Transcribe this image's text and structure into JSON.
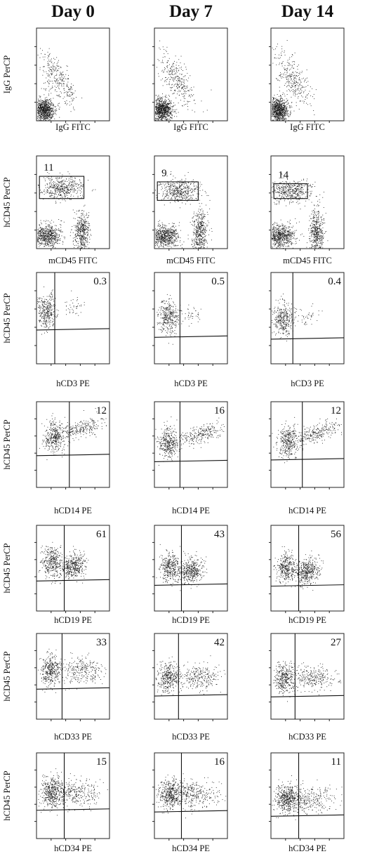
{
  "chart_data": {
    "type": "scatter",
    "columns": [
      "Day 0",
      "Day 7",
      "Day 14"
    ],
    "rows": [
      {
        "row": 1,
        "xlabel": "IgG FITC",
        "ylabel": "IgG PerCP",
        "gate": "none",
        "values": [
          null,
          null,
          null
        ]
      },
      {
        "row": 2,
        "xlabel": "mCD45 FITC",
        "ylabel": "hCD45 PerCP",
        "gate": "rectangle",
        "values": [
          "11",
          "9",
          "14"
        ]
      },
      {
        "row": 3,
        "xlabel": "hCD3 PE",
        "ylabel": "hCD45 PerCP",
        "gate": "quadrant",
        "values": [
          "0.3",
          "0.5",
          "0.4"
        ]
      },
      {
        "row": 4,
        "xlabel": "hCD14 PE",
        "ylabel": "hCD45 PerCP",
        "gate": "quadrant",
        "values": [
          "12",
          "16",
          "12"
        ]
      },
      {
        "row": 5,
        "xlabel": "hCD19 PE",
        "ylabel": "hCD45 PerCP",
        "gate": "quadrant",
        "values": [
          "61",
          "43",
          "56"
        ]
      },
      {
        "row": 6,
        "xlabel": "hCD33 PE",
        "ylabel": "hCD45 PerCP",
        "gate": "quadrant",
        "values": [
          "33",
          "42",
          "27"
        ]
      },
      {
        "row": 7,
        "xlabel": "hCD34 PE",
        "ylabel": "hCD45 PerCP",
        "gate": "quadrant",
        "values": [
          "15",
          "16",
          "11"
        ]
      }
    ],
    "scale": "log"
  },
  "colors": {
    "ink": "#111111",
    "dots": "#1a1a1a"
  }
}
